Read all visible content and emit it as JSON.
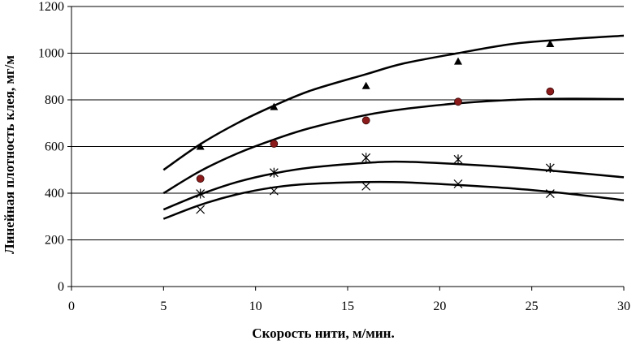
{
  "chart_data": {
    "type": "scatter",
    "title": "",
    "xlabel": "Скорость нити, м/мин.",
    "ylabel": "Линейная плотность клея, мг/м",
    "xlim": [
      0,
      30
    ],
    "ylim": [
      0,
      1200
    ],
    "xticks": [
      0,
      5,
      10,
      15,
      20,
      25,
      30
    ],
    "yticks": [
      0,
      200,
      400,
      600,
      800,
      1000,
      1200
    ],
    "grid": "horizontal",
    "legend": "none",
    "series": [
      {
        "marker": "triangle",
        "color": "#000000",
        "points": [
          [
            7,
            600
          ],
          [
            11,
            770
          ],
          [
            16,
            860
          ],
          [
            21,
            965
          ],
          [
            26,
            1040
          ]
        ],
        "curve": [
          [
            5,
            500
          ],
          [
            7,
            610
          ],
          [
            9,
            700
          ],
          [
            11,
            775
          ],
          [
            13,
            840
          ],
          [
            16,
            910
          ],
          [
            18,
            955
          ],
          [
            21,
            1000
          ],
          [
            24,
            1040
          ],
          [
            27,
            1060
          ],
          [
            30,
            1075
          ]
        ]
      },
      {
        "marker": "circle",
        "color": "#8B1A1A",
        "points": [
          [
            7,
            462
          ],
          [
            11,
            612
          ],
          [
            16,
            712
          ],
          [
            21,
            792
          ],
          [
            26,
            836
          ]
        ],
        "curve": [
          [
            5,
            400
          ],
          [
            7,
            495
          ],
          [
            9,
            570
          ],
          [
            11,
            630
          ],
          [
            13,
            680
          ],
          [
            16,
            735
          ],
          [
            18,
            760
          ],
          [
            21,
            785
          ],
          [
            24,
            800
          ],
          [
            27,
            805
          ],
          [
            30,
            803
          ]
        ]
      },
      {
        "marker": "asterisk",
        "color": "#000000",
        "points": [
          [
            7,
            398
          ],
          [
            11,
            488
          ],
          [
            16,
            552
          ],
          [
            21,
            545
          ],
          [
            26,
            508
          ]
        ],
        "curve": [
          [
            5,
            330
          ],
          [
            7,
            395
          ],
          [
            9,
            448
          ],
          [
            11,
            485
          ],
          [
            13,
            510
          ],
          [
            16,
            530
          ],
          [
            18,
            535
          ],
          [
            21,
            525
          ],
          [
            24,
            510
          ],
          [
            27,
            490
          ],
          [
            30,
            468
          ]
        ]
      },
      {
        "marker": "cross",
        "color": "#000000",
        "points": [
          [
            7,
            330
          ],
          [
            11,
            410
          ],
          [
            16,
            430
          ],
          [
            21,
            440
          ],
          [
            26,
            398
          ]
        ],
        "curve": [
          [
            5,
            290
          ],
          [
            7,
            350
          ],
          [
            9,
            395
          ],
          [
            11,
            425
          ],
          [
            13,
            440
          ],
          [
            16,
            448
          ],
          [
            18,
            447
          ],
          [
            21,
            435
          ],
          [
            24,
            420
          ],
          [
            27,
            398
          ],
          [
            30,
            370
          ]
        ]
      }
    ]
  }
}
